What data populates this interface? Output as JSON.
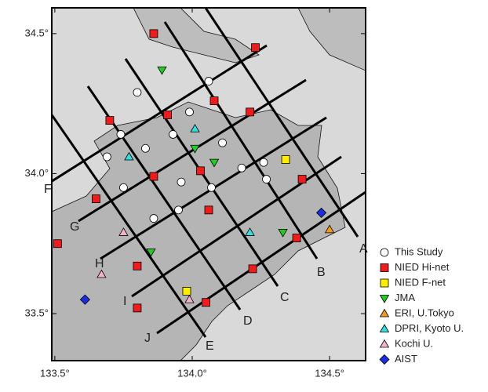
{
  "map": {
    "xlim": [
      133.489,
      134.631
    ],
    "ylim": [
      33.332,
      34.592
    ],
    "xticks": [
      {
        "value": 133.5,
        "label": "133.5°"
      },
      {
        "value": 134.0,
        "label": "134.0°"
      },
      {
        "value": 134.5,
        "label": "134.5°"
      }
    ],
    "yticks": [
      {
        "value": 33.5,
        "label": "33.5°"
      },
      {
        "value": 34.0,
        "label": "34.0°"
      },
      {
        "value": 34.5,
        "label": "34.5°"
      }
    ],
    "profiles": [
      "A",
      "B",
      "C",
      "D",
      "E",
      "F",
      "G",
      "H",
      "I",
      "J"
    ],
    "series": [
      {
        "name": "This Study",
        "color": "#ffffff",
        "marker": "circle",
        "lon": [
          133.8,
          134.06,
          133.99,
          133.74,
          133.93,
          134.11,
          133.69,
          133.83,
          134.26,
          134.18,
          133.96,
          134.27,
          133.75,
          134.07,
          133.95,
          133.86
        ],
        "lat": [
          34.29,
          34.33,
          34.22,
          34.14,
          34.14,
          34.11,
          34.06,
          34.09,
          34.04,
          34.02,
          33.97,
          33.98,
          33.95,
          33.95,
          33.87,
          33.84
        ]
      },
      {
        "name": "NIED Hi-net",
        "color": "#ee1c1c",
        "marker": "square",
        "lon": [
          133.86,
          134.23,
          134.08,
          133.91,
          134.21,
          133.7,
          133.86,
          134.03,
          134.4,
          133.65,
          134.06,
          133.51,
          133.8,
          134.22,
          134.38,
          134.05,
          133.8
        ],
        "lat": [
          34.5,
          34.45,
          34.26,
          34.21,
          34.22,
          34.19,
          33.99,
          34.01,
          33.98,
          33.91,
          33.87,
          33.75,
          33.67,
          33.66,
          33.77,
          33.54,
          33.52
        ]
      },
      {
        "name": "NIED F-net",
        "color": "#ffee00",
        "marker": "square",
        "lon": [
          134.34,
          133.98
        ],
        "lat": [
          34.05,
          33.58
        ]
      },
      {
        "name": "JMA",
        "color": "#22cc22",
        "marker": "triangle-down",
        "lon": [
          133.89,
          134.01,
          134.08,
          134.33,
          133.85
        ],
        "lat": [
          34.37,
          34.09,
          34.04,
          33.79,
          33.72
        ]
      },
      {
        "name": "ERI, U.Tokyo",
        "color": "#f39a1e",
        "marker": "triangle",
        "lon": [
          134.5
        ],
        "lat": [
          33.8
        ]
      },
      {
        "name": "DPRI, Kyoto U.",
        "color": "#33dddd",
        "marker": "triangle",
        "lon": [
          133.77,
          134.01,
          134.21
        ],
        "lat": [
          34.06,
          34.16,
          33.79
        ]
      },
      {
        "name": "Kochi U.",
        "color": "#f4b4c8",
        "marker": "triangle",
        "lon": [
          133.75,
          133.67,
          133.99
        ],
        "lat": [
          33.79,
          33.64,
          33.55
        ]
      },
      {
        "name": "AIST",
        "color": "#1a2ee0",
        "marker": "diamond",
        "lon": [
          134.47,
          133.61
        ],
        "lat": [
          33.86,
          33.55
        ]
      }
    ]
  }
}
